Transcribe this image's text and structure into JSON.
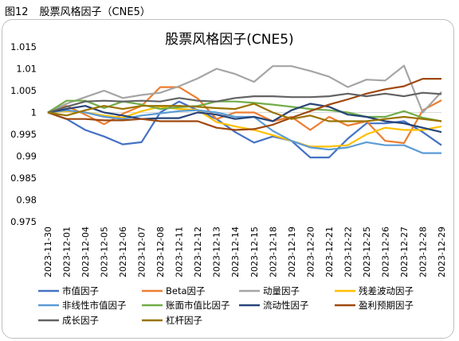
{
  "figure_caption": {
    "number": "图12",
    "title": "股票风格因子（CNE5）"
  },
  "chart_data": {
    "type": "line",
    "title": "股票风格因子(CNE5)",
    "xlabel": "",
    "ylabel": "",
    "ylim": [
      0.975,
      1.015
    ],
    "yticks": [
      "1.015",
      "1.01",
      "1.005",
      "1",
      "0.995",
      "0.99",
      "0.985",
      "0.98",
      "0.975"
    ],
    "grid": false,
    "legend_position": "bottom",
    "x": [
      "2023-11-30",
      "2023-12-01",
      "2023-12-04",
      "2023-12-05",
      "2023-12-06",
      "2023-12-07",
      "2023-12-08",
      "2023-12-11",
      "2023-12-12",
      "2023-12-13",
      "2023-12-14",
      "2023-12-15",
      "2023-12-18",
      "2023-12-19",
      "2023-12-20",
      "2023-12-21",
      "2023-12-22",
      "2023-12-25",
      "2023-12-26",
      "2023-12-27",
      "2023-12-28",
      "2023-12-29"
    ],
    "series": [
      {
        "name": "市值因子",
        "color": "#4472C4",
        "values": [
          1.0,
          0.9985,
          0.996,
          0.9945,
          0.9927,
          0.9932,
          1.0,
          1.0025,
          1.0005,
          0.9985,
          0.9955,
          0.9931,
          0.9945,
          0.9935,
          0.9897,
          0.9897,
          0.994,
          0.9975,
          0.9975,
          0.998,
          0.9955,
          0.9925
        ]
      },
      {
        "name": "Beta因子",
        "color": "#ED7D31",
        "values": [
          1.0,
          1.0015,
          0.9995,
          0.9973,
          0.9997,
          1.0015,
          1.0058,
          1.0058,
          1.0032,
          0.9985,
          1.0,
          1.0,
          0.998,
          0.999,
          0.996,
          0.999,
          0.997,
          0.998,
          0.9935,
          0.993,
          1.0005,
          1.0028
        ]
      },
      {
        "name": "动量因子",
        "color": "#A5A5A5",
        "values": [
          1.0,
          1.002,
          1.0035,
          1.005,
          1.0033,
          1.004,
          1.0045,
          1.006,
          1.0078,
          1.01,
          1.0088,
          1.007,
          1.0106,
          1.0106,
          1.0095,
          1.0082,
          1.0058,
          1.0075,
          1.0073,
          1.0107,
          1.0,
          1.0047
        ]
      },
      {
        "name": "残差波动因子",
        "color": "#FFC000",
        "values": [
          1.0,
          1.0003,
          1.0,
          0.9993,
          0.9988,
          1.0003,
          1.0013,
          1.0008,
          1.0006,
          0.9978,
          0.9968,
          0.996,
          0.9948,
          0.9935,
          0.9922,
          0.9922,
          0.9925,
          0.995,
          0.9965,
          0.996,
          0.996,
          0.9968
        ]
      },
      {
        "name": "非线性市值因子",
        "color": "#5B9BD5",
        "values": [
          1.0,
          1.0005,
          1.0,
          0.999,
          0.9985,
          0.9993,
          0.9998,
          1.0003,
          1.0005,
          1.0,
          0.999,
          0.999,
          0.9958,
          0.9935,
          0.992,
          0.9915,
          0.992,
          0.9932,
          0.9925,
          0.9925,
          0.9907,
          0.9907
        ]
      },
      {
        "name": "账面市值比因子",
        "color": "#70AD47",
        "values": [
          1.0,
          1.0027,
          1.0027,
          1.001,
          1.0025,
          1.0018,
          1.0008,
          1.0012,
          1.0015,
          1.0025,
          1.0025,
          1.0022,
          1.0018,
          1.0013,
          1.0008,
          1.0005,
          1.0,
          0.999,
          0.999,
          1.0003,
          0.9988,
          0.998
        ]
      },
      {
        "name": "流动性因子",
        "color": "#264478",
        "values": [
          1.0,
          1.0008,
          1.0015,
          1.0,
          0.9993,
          0.9985,
          0.9987,
          0.9987,
          1.0,
          0.9995,
          0.9985,
          0.999,
          0.998,
          1.0005,
          1.002,
          1.0013,
          0.9995,
          0.999,
          0.998,
          0.9975,
          0.9965,
          0.9955
        ]
      },
      {
        "name": "盈利预期因子",
        "color": "#9E480E",
        "values": [
          1.0,
          0.9985,
          0.9985,
          0.9982,
          0.9982,
          0.9985,
          0.998,
          0.998,
          0.998,
          0.9965,
          0.996,
          0.9962,
          0.9972,
          0.9988,
          1.0003,
          1.0018,
          1.003,
          1.0043,
          1.0053,
          1.006,
          1.0077,
          1.0077
        ]
      },
      {
        "name": "成长因子",
        "color": "#636363",
        "values": [
          1.0,
          1.0013,
          1.0025,
          1.0027,
          1.0025,
          1.0027,
          1.0025,
          1.0033,
          1.0027,
          1.0025,
          1.0033,
          1.0037,
          1.0037,
          1.0035,
          1.0035,
          1.0037,
          1.0043,
          1.0037,
          1.0043,
          1.0037,
          1.0045,
          1.0042
        ]
      },
      {
        "name": "杠杆因子",
        "color": "#997300",
        "values": [
          1.0,
          0.9993,
          1.0005,
          1.0015,
          1.0008,
          1.0015,
          1.0015,
          1.0015,
          1.0013,
          1.001,
          1.0008,
          1.002,
          1.0,
          0.9985,
          0.9993,
          0.998,
          0.998,
          0.998,
          0.9985,
          0.999,
          0.9985,
          0.998
        ]
      }
    ]
  }
}
